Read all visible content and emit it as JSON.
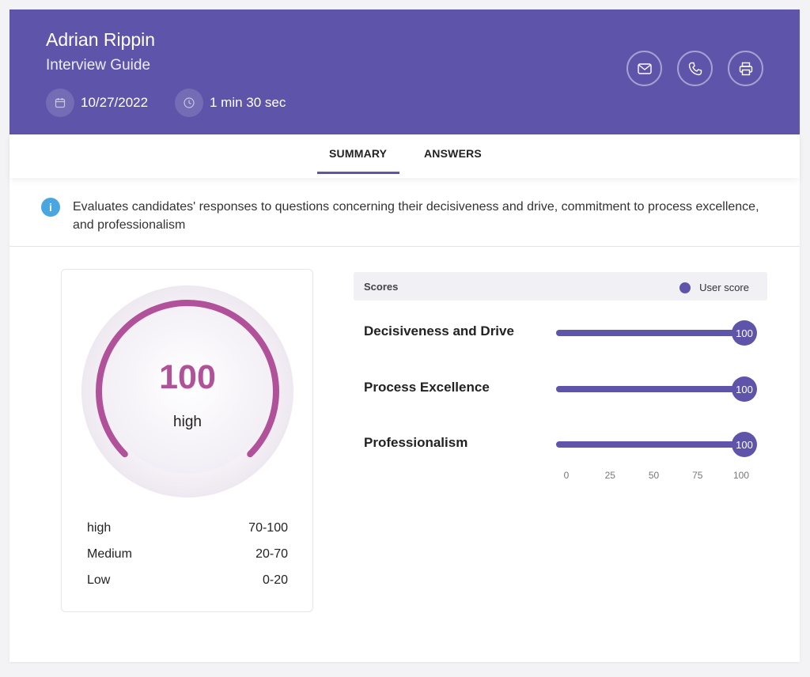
{
  "header": {
    "name": "Adrian Rippin",
    "subtitle": "Interview Guide",
    "date": "10/27/2022",
    "duration": "1 min 30 sec",
    "date_icon": "calendar-icon",
    "duration_icon": "clock-icon",
    "actions": [
      {
        "icon": "mail-icon"
      },
      {
        "icon": "phone-icon"
      },
      {
        "icon": "printer-icon"
      }
    ],
    "background_color": "#5e55ab"
  },
  "tabs": [
    {
      "label": "SUMMARY",
      "active": true
    },
    {
      "label": "ANSWERS",
      "active": false
    }
  ],
  "description": "Evaluates candidates' responses to questions concerning their decisiveness and drive, commitment to process excellence, and professionalism",
  "gauge": {
    "value": "100",
    "level": "high",
    "fraction": 1.0,
    "color": "#b0519a",
    "legend": [
      {
        "label": "high",
        "range": "70-100"
      },
      {
        "label": "Medium",
        "range": "20-70"
      },
      {
        "label": "Low",
        "range": "0-20"
      }
    ]
  },
  "scores": {
    "title": "Scores",
    "legend_label": "User score",
    "accent_color": "#5e55ab",
    "items": [
      {
        "label": "Decisiveness and Drive",
        "value": 100,
        "display": "100"
      },
      {
        "label": "Process Excellence",
        "value": 100,
        "display": "100"
      },
      {
        "label": "Professionalism",
        "value": 100,
        "display": "100"
      }
    ],
    "axis_ticks": [
      "0",
      "25",
      "50",
      "75",
      "100"
    ],
    "axis_max": 100
  }
}
